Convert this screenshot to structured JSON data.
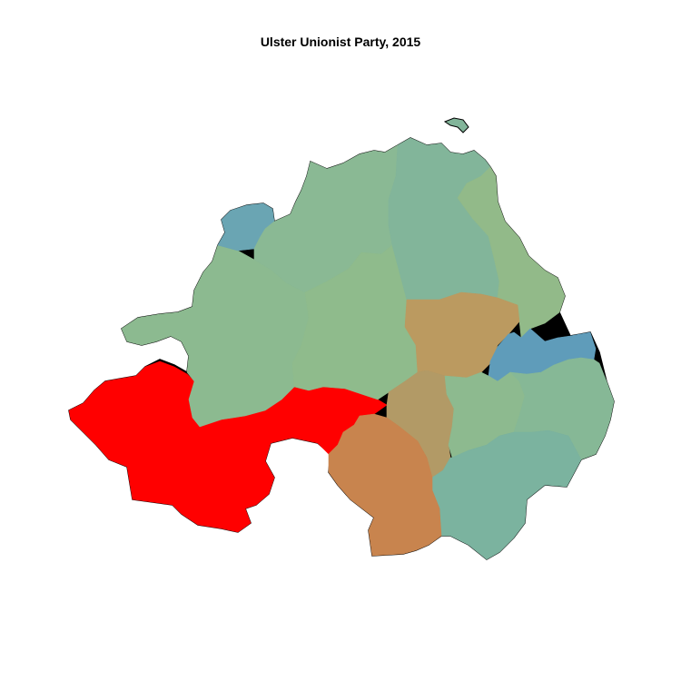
{
  "title": "Ulster Unionist Party, 2015",
  "regions": [
    {
      "id": "north-antrim",
      "fill": "#82b59a"
    },
    {
      "id": "east-londonderry",
      "fill": "#8ab994"
    },
    {
      "id": "foyle",
      "fill": "#6aa5b3"
    },
    {
      "id": "west-tyrone",
      "fill": "#8cba90"
    },
    {
      "id": "mid-ulster",
      "fill": "#8fbb8c"
    },
    {
      "id": "east-antrim",
      "fill": "#92ba89"
    },
    {
      "id": "south-antrim",
      "fill": "#bb9a60"
    },
    {
      "id": "fermanagh-south-tyrone",
      "fill": "#ff0000"
    },
    {
      "id": "newry-armagh",
      "fill": "#c8844e"
    },
    {
      "id": "upper-bann",
      "fill": "#b29a66"
    },
    {
      "id": "lagan-valley",
      "fill": "#8dba8f"
    },
    {
      "id": "belfast",
      "fill": "#5f9cba"
    },
    {
      "id": "strangford",
      "fill": "#86b896"
    },
    {
      "id": "south-down",
      "fill": "#7bb39f"
    }
  ]
}
